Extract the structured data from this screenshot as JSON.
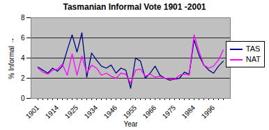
{
  "chart_data": {
    "type": "line",
    "title": "Tasmanian Informal Vote 1901 -2001",
    "x_label": "Year",
    "y_label": "% Informal",
    "categories": [
      "1901",
      null,
      null,
      null,
      "1914",
      null,
      null,
      null,
      "1925",
      null,
      null,
      null,
      "1934",
      null,
      null,
      null,
      "1946",
      null,
      null,
      null,
      "1955",
      null,
      null,
      null,
      "1966",
      null,
      null,
      null,
      "1975",
      null,
      null,
      null,
      "1984",
      null,
      null,
      null,
      "1996",
      null,
      null
    ],
    "series": [
      {
        "name": "TAS",
        "color": "#000080",
        "values": [
          3.1,
          2.8,
          2.5,
          3.0,
          2.7,
          3.2,
          4.8,
          6.3,
          4.6,
          6.5,
          2.1,
          4.5,
          3.8,
          3.2,
          3.0,
          3.3,
          2.5,
          3.0,
          2.8,
          1.0,
          4.0,
          3.7,
          2.0,
          2.5,
          3.2,
          2.3,
          2.0,
          1.8,
          1.9,
          2.0,
          2.6,
          2.4,
          5.8,
          4.3,
          3.3,
          2.8,
          2.5,
          3.2,
          3.7
        ]
      },
      {
        "name": "NAT",
        "color": "#ff00ff",
        "values": [
          3.0,
          2.6,
          2.4,
          2.8,
          2.9,
          3.4,
          2.3,
          4.4,
          2.3,
          4.2,
          2.5,
          3.3,
          3.0,
          2.3,
          2.5,
          2.2,
          2.0,
          2.5,
          2.4,
          1.5,
          2.8,
          2.9,
          2.2,
          2.4,
          2.1,
          2.2,
          2.0,
          1.9,
          1.9,
          2.3,
          2.4,
          2.3,
          6.3,
          4.7,
          3.3,
          3.0,
          3.2,
          3.8,
          4.8
        ]
      }
    ],
    "ylim": [
      0,
      8
    ],
    "yticks": [
      0,
      2,
      4,
      6,
      8
    ],
    "grid": true,
    "legend": "right"
  }
}
